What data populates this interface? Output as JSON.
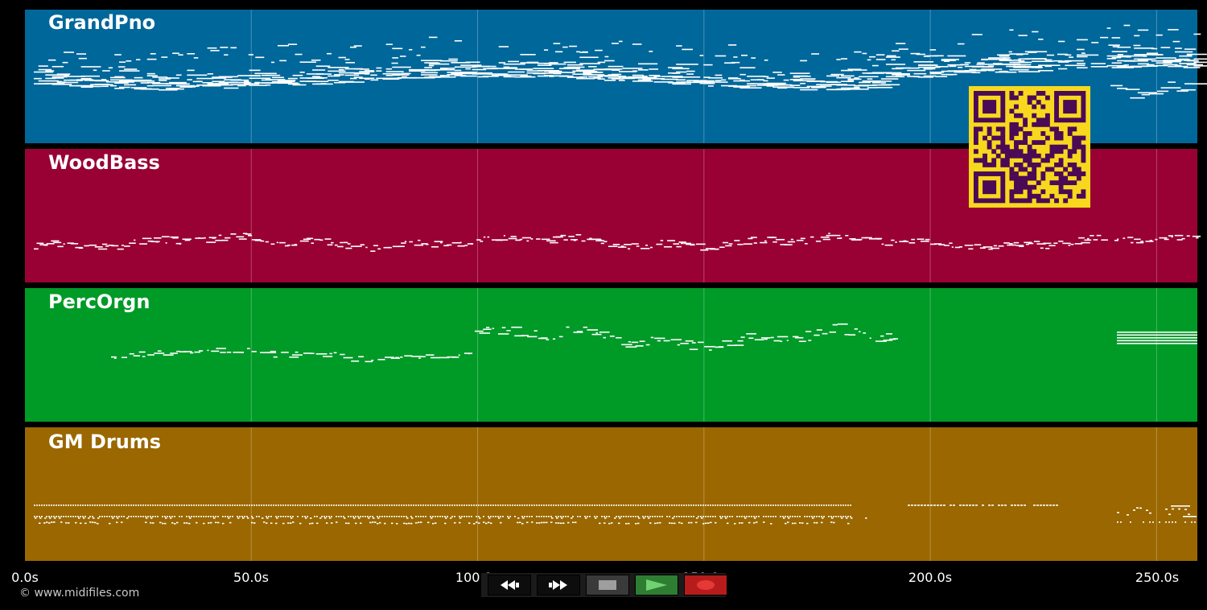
{
  "tracks": [
    {
      "name": "GrandPno",
      "color": "#00679a"
    },
    {
      "name": "WoodBass",
      "color": "#990033"
    },
    {
      "name": "PercOrgn",
      "color": "#009a27"
    },
    {
      "name": "GM Drums",
      "color": "#9a6700"
    }
  ],
  "time_axis": {
    "min_seconds": 0,
    "max_seconds": 259,
    "ticks": [
      "0.0s",
      "50.0s",
      "100.0s",
      "150.0s",
      "200.0s",
      "250.0s"
    ]
  },
  "copyright": "© www.midifiles.com",
  "transport": {
    "rewind_icon": "rewind-icon",
    "fast_forward_icon": "fast-forward-icon",
    "stop_icon": "stop-icon",
    "play_icon": "play-icon",
    "record_icon": "record-icon",
    "play_color": "#2e7d32",
    "record_color": "#b71c1c"
  },
  "qr_code": {
    "background": "#f7d81f",
    "foreground": "#4b0a55"
  }
}
